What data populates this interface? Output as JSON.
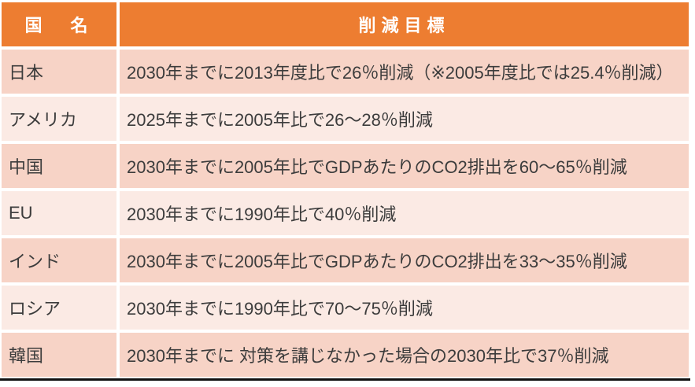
{
  "table": {
    "header": {
      "country_col": "国　名",
      "target_col": "削減目標"
    },
    "rows": [
      {
        "country": "日本",
        "target": "2030年までに2013年度比で26％削減（※2005年度比では25.4％削減）"
      },
      {
        "country": "アメリカ",
        "target": "2025年までに2005年比で26～28％削減"
      },
      {
        "country": "中国",
        "target": "2030年までに2005年比でGDPあたりのCO2排出を60～65％削減"
      },
      {
        "country": "EU",
        "target": "2030年までに1990年比で40％削減"
      },
      {
        "country": "インド",
        "target": "2030年までに2005年比でGDPあたりのCO2排出を33～35％削減"
      },
      {
        "country": "ロシア",
        "target": "2030年までに1990年比で70～75％削減"
      },
      {
        "country": "韓国",
        "target": "2030年までに 対策を講じなかった場合の2030年比で37％削減"
      }
    ],
    "colors": {
      "page_bg": "#FFFFFF",
      "header_bg": "#ED7D31",
      "header_text": "#FFFFFF",
      "row_dark": "#F7D3C6",
      "row_light": "#FBEAE4",
      "body_text": "#3C3C3C",
      "bottom_border": "#111111"
    }
  }
}
